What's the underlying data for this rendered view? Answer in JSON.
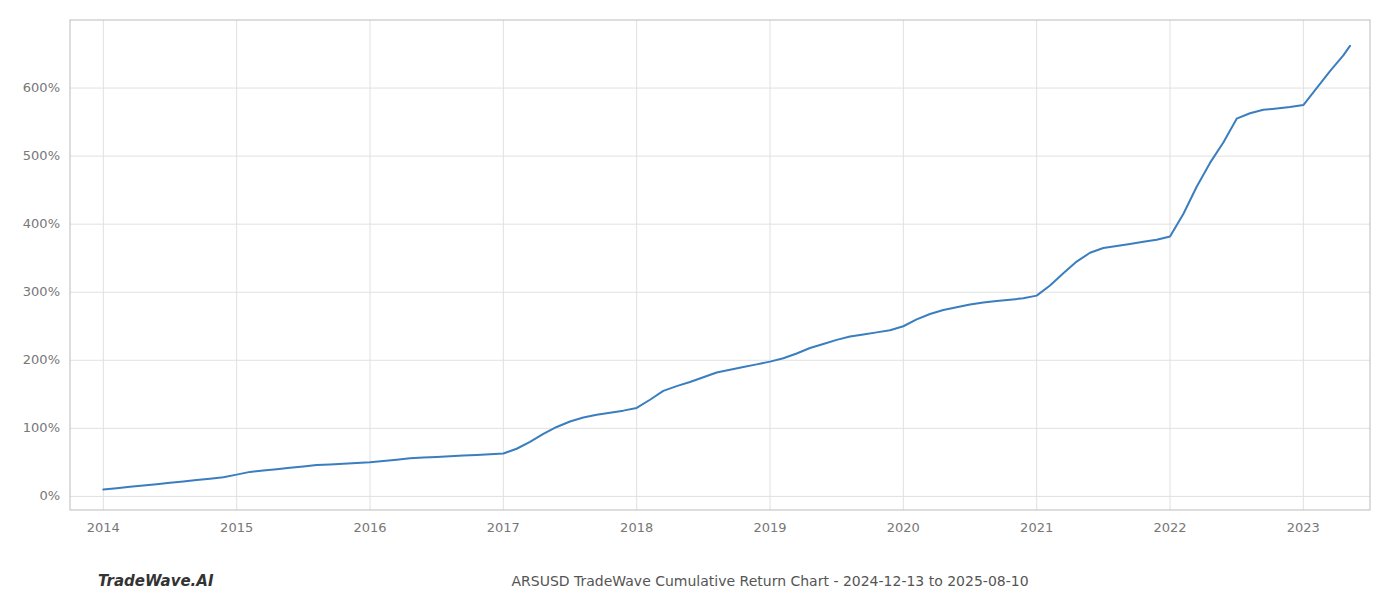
{
  "chart_data": {
    "type": "line",
    "title": "ARSUSD TradeWave Cumulative Return Chart - 2024-12-13 to 2025-08-10",
    "annotations": [
      "TradeWave.AI"
    ],
    "color": "#3a7ebf",
    "grid": true,
    "x": [
      2014.0,
      2014.1,
      2014.2,
      2014.3,
      2014.4,
      2014.5,
      2014.6,
      2014.7,
      2014.8,
      2014.9,
      2015.0,
      2015.1,
      2015.2,
      2015.3,
      2015.4,
      2015.5,
      2015.6,
      2015.7,
      2015.8,
      2015.9,
      2016.0,
      2016.1,
      2016.2,
      2016.3,
      2016.4,
      2016.5,
      2016.6,
      2016.7,
      2016.8,
      2016.9,
      2017.0,
      2017.1,
      2017.2,
      2017.3,
      2017.4,
      2017.5,
      2017.6,
      2017.7,
      2017.8,
      2017.9,
      2018.0,
      2018.1,
      2018.2,
      2018.3,
      2018.4,
      2018.5,
      2018.6,
      2018.7,
      2018.8,
      2018.9,
      2019.0,
      2019.1,
      2019.2,
      2019.3,
      2019.4,
      2019.5,
      2019.6,
      2019.7,
      2019.8,
      2019.9,
      2020.0,
      2020.1,
      2020.2,
      2020.3,
      2020.4,
      2020.5,
      2020.6,
      2020.7,
      2020.8,
      2020.9,
      2021.0,
      2021.1,
      2021.2,
      2021.3,
      2021.4,
      2021.5,
      2021.6,
      2021.7,
      2021.8,
      2021.9,
      2022.0,
      2022.1,
      2022.2,
      2022.3,
      2022.4,
      2022.5,
      2022.6,
      2022.7,
      2022.8,
      2022.9,
      2023.0,
      2023.1,
      2023.2,
      2023.3,
      2023.35
    ],
    "values": [
      10,
      12,
      14,
      16,
      18,
      20,
      22,
      24,
      26,
      28,
      32,
      36,
      38,
      40,
      42,
      44,
      46,
      47,
      48,
      49,
      50,
      52,
      54,
      56,
      57,
      58,
      59,
      60,
      61,
      62,
      63,
      70,
      80,
      92,
      102,
      110,
      116,
      120,
      123,
      126,
      130,
      142,
      155,
      162,
      168,
      175,
      182,
      186,
      190,
      194,
      198,
      203,
      210,
      218,
      224,
      230,
      235,
      238,
      241,
      244,
      250,
      260,
      268,
      274,
      278,
      282,
      285,
      287,
      289,
      291,
      295,
      310,
      328,
      345,
      358,
      365,
      368,
      371,
      374,
      377,
      382,
      415,
      455,
      490,
      520,
      555,
      563,
      568,
      570,
      572,
      575,
      600,
      625,
      648,
      662
    ],
    "xlim": [
      2013.75,
      2023.5
    ],
    "xticks": [
      2014,
      2015,
      2016,
      2017,
      2018,
      2019,
      2020,
      2021,
      2022,
      2023
    ],
    "ylim": [
      -20,
      700
    ],
    "yticks": [
      {
        "value": 0,
        "label": "0%"
      },
      {
        "value": 100,
        "label": "100%"
      },
      {
        "value": 200,
        "label": "200%"
      },
      {
        "value": 300,
        "label": "300%"
      },
      {
        "value": 400,
        "label": "400%"
      },
      {
        "value": 500,
        "label": "500%"
      },
      {
        "value": 600,
        "label": "600%"
      }
    ]
  }
}
